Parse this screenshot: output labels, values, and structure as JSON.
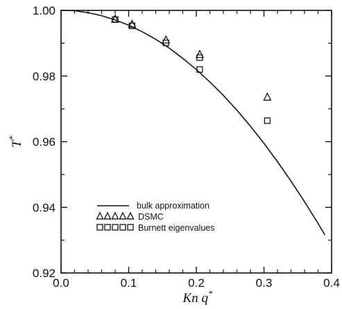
{
  "chart_data": {
    "type": "scatter",
    "xlabel": "Kn q",
    "xlabel_superscript": "*",
    "ylabel": "T",
    "ylabel_superscript": "*",
    "xlim": [
      0.0,
      0.4
    ],
    "ylim": [
      0.92,
      1.0
    ],
    "x_ticks": [
      0.0,
      0.1,
      0.2,
      0.3,
      0.4
    ],
    "x_tick_labels": [
      "0.0",
      "0.1",
      "0.2",
      "0.3",
      "0.4"
    ],
    "y_ticks": [
      0.92,
      0.94,
      0.96,
      0.98,
      1.0
    ],
    "y_tick_labels": [
      "0.92",
      "0.94",
      "0.96",
      "0.98",
      "1.00"
    ],
    "grid": false,
    "legend_position": "lower-left",
    "series": [
      {
        "name": "bulk approximation",
        "marker": "line",
        "x": [
          0.0,
          0.02,
          0.04,
          0.06,
          0.08,
          0.1,
          0.12,
          0.14,
          0.16,
          0.18,
          0.2,
          0.22,
          0.24,
          0.26,
          0.28,
          0.3,
          0.32,
          0.34,
          0.36,
          0.38,
          0.39
        ],
        "y": [
          1.0,
          0.9999,
          0.9993,
          0.9984,
          0.9971,
          0.9955,
          0.9935,
          0.9912,
          0.9885,
          0.9854,
          0.982,
          0.9782,
          0.9741,
          0.9696,
          0.9647,
          0.9595,
          0.9539,
          0.948,
          0.9417,
          0.9351,
          0.9316
        ]
      },
      {
        "name": "DSMC",
        "legend_marker_text": "ΔΔΔΔΔ",
        "marker": "triangle",
        "x": [
          0.08,
          0.105,
          0.155,
          0.205,
          0.305
        ],
        "y": [
          0.9974,
          0.9958,
          0.991,
          0.9866,
          0.9736
        ]
      },
      {
        "name": "Burnett eigenvalues",
        "legend_marker_text": "□□□□□",
        "marker": "square",
        "x": [
          0.08,
          0.105,
          0.155,
          0.205,
          0.305
        ],
        "y": [
          0.9972,
          0.9953,
          0.9901,
          0.982,
          0.9664
        ]
      }
    ],
    "extra_points": [
      {
        "series": "Burnett eigenvalues",
        "x": 0.205,
        "y": 0.9856
      }
    ]
  }
}
